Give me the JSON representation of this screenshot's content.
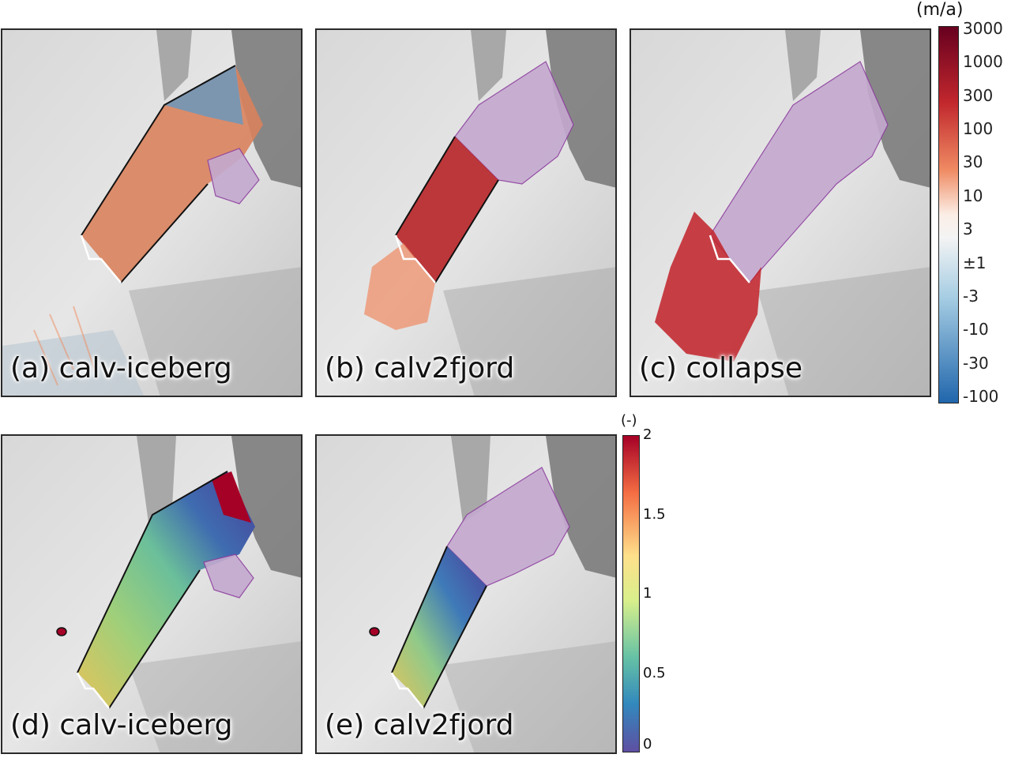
{
  "panels": [
    {
      "label": "(a) calv-iceberg",
      "variable": "velocity_change",
      "outline_colors": [
        "#111111",
        "#ffffff"
      ]
    },
    {
      "label": "(b) calv2fjord",
      "variable": "velocity_change",
      "outline_colors": [
        "#111111",
        "#ffffff"
      ]
    },
    {
      "label": "(c) collapse",
      "variable": "velocity_change",
      "outline_colors": [
        "#ffffff"
      ]
    },
    {
      "label": "(d) calv-iceberg",
      "variable": "ratio"
    },
    {
      "label": "(e) calv2fjord",
      "variable": "ratio"
    }
  ],
  "colorbar_velocity": {
    "unit": "(m/a)",
    "ticks": [
      "3000",
      "1000",
      "300",
      "100",
      "30",
      "10",
      "3",
      "±1",
      "-3",
      "-10",
      "-30",
      "-100"
    ],
    "colors": [
      "#7a0c22",
      "#c3262a",
      "#e7764d",
      "#fbeee6",
      "#7fb1d3",
      "#2166ac"
    ]
  },
  "colorbar_ratio": {
    "unit": "(-)",
    "ticks": [
      "2",
      "1.5",
      "1",
      "0.5",
      "0"
    ],
    "colors": [
      "#a50026",
      "#f57d4a",
      "#fee08b",
      "#d8ef8b",
      "#66c2a5",
      "#3288bd",
      "#4a3f98"
    ]
  },
  "colors": {
    "removed_ice": "#c4a9cf",
    "removed_outline": "#8d3f9f",
    "background_gray": "#cfcfcf"
  }
}
